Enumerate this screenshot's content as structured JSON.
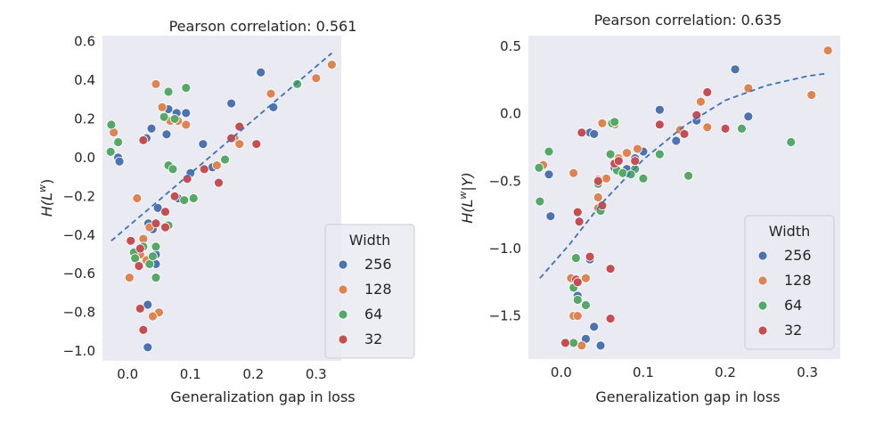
{
  "colors": {
    "background": "#eaeaf2",
    "grid": "#ffffff",
    "trend": "#3a73b9",
    "256": "#4c72b0",
    "128": "#dd8452",
    "64": "#55a868",
    "32": "#c44e52"
  },
  "chart_data": [
    {
      "type": "scatter",
      "title": "Pearson correlation: 0.561",
      "xlabel": "Generalization gap in loss",
      "ylabel_main": "H(L",
      "ylabel_sup": "w",
      "ylabel_tail": ")",
      "xlim": [
        -0.04,
        0.34
      ],
      "ylim": [
        -1.05,
        0.63
      ],
      "xticks": [
        0.0,
        0.1,
        0.2,
        0.3
      ],
      "xtick_labels": [
        "0.0",
        "0.1",
        "0.2",
        "0.3"
      ],
      "yticks": [
        0.6,
        0.4,
        0.2,
        0.0,
        -0.2,
        -0.4,
        -0.6,
        -0.8,
        -1.0
      ],
      "ytick_labels": [
        "0.6",
        "0.4",
        "0.2",
        "0.0",
        "−0.2",
        "−0.4",
        "−0.6",
        "−0.8",
        "−1.0"
      ],
      "grid": false,
      "legend_position": "bottom-right",
      "legend_title": "Width",
      "trend": {
        "type": "linear",
        "x": [
          -0.026,
          0.325
        ],
        "y": [
          -0.43,
          0.54
        ]
      },
      "series": [
        {
          "name": "256",
          "color_key": "256",
          "points": [
            [
              -0.015,
              0.0
            ],
            [
              -0.013,
              -0.02
            ],
            [
              0.03,
              0.1
            ],
            [
              0.038,
              0.15
            ],
            [
              0.065,
              0.25
            ],
            [
              0.078,
              0.23
            ],
            [
              0.093,
              0.23
            ],
            [
              0.062,
              0.12
            ],
            [
              0.12,
              0.07
            ],
            [
              0.1,
              -0.08
            ],
            [
              0.08,
              -0.21
            ],
            [
              0.033,
              -0.34
            ],
            [
              0.04,
              -0.37
            ],
            [
              0.048,
              -0.26
            ],
            [
              0.045,
              -0.5
            ],
            [
              0.045,
              -0.55
            ],
            [
              0.032,
              -0.76
            ],
            [
              0.032,
              -0.98
            ],
            [
              0.135,
              -0.05
            ],
            [
              0.165,
              0.28
            ],
            [
              0.212,
              0.44
            ],
            [
              0.232,
              0.26
            ]
          ]
        },
        {
          "name": "128",
          "color_key": "128",
          "points": [
            [
              -0.022,
              0.13
            ],
            [
              0.045,
              0.38
            ],
            [
              0.055,
              0.26
            ],
            [
              0.068,
              0.19
            ],
            [
              0.08,
              0.19
            ],
            [
              0.093,
              0.17
            ],
            [
              0.015,
              -0.21
            ],
            [
              0.035,
              -0.36
            ],
            [
              0.025,
              -0.42
            ],
            [
              0.03,
              -0.53
            ],
            [
              0.02,
              -0.5
            ],
            [
              0.003,
              -0.62
            ],
            [
              0.05,
              -0.8
            ],
            [
              0.04,
              -0.82
            ],
            [
              0.142,
              -0.04
            ],
            [
              0.17,
              0.1
            ],
            [
              0.178,
              0.07
            ],
            [
              0.228,
              0.33
            ],
            [
              0.3,
              0.41
            ],
            [
              0.325,
              0.48
            ]
          ]
        },
        {
          "name": "64",
          "color_key": "64",
          "points": [
            [
              -0.026,
              0.17
            ],
            [
              -0.027,
              0.03
            ],
            [
              -0.015,
              0.08
            ],
            [
              0.058,
              0.21
            ],
            [
              0.065,
              0.34
            ],
            [
              0.093,
              0.36
            ],
            [
              0.075,
              0.2
            ],
            [
              0.065,
              -0.04
            ],
            [
              0.072,
              -0.06
            ],
            [
              0.09,
              -0.22
            ],
            [
              0.105,
              -0.21
            ],
            [
              0.065,
              -0.35
            ],
            [
              0.045,
              -0.46
            ],
            [
              0.035,
              -0.55
            ],
            [
              0.025,
              -0.46
            ],
            [
              0.01,
              -0.49
            ],
            [
              0.012,
              -0.52
            ],
            [
              0.04,
              -0.51
            ],
            [
              0.045,
              -0.62
            ],
            [
              0.155,
              -0.01
            ],
            [
              0.27,
              0.38
            ]
          ]
        },
        {
          "name": "32",
          "color_key": "32",
          "points": [
            [
              0.025,
              0.09
            ],
            [
              0.005,
              -0.43
            ],
            [
              0.02,
              -0.47
            ],
            [
              0.018,
              -0.56
            ],
            [
              0.06,
              -0.28
            ],
            [
              0.045,
              -0.34
            ],
            [
              0.06,
              -0.36
            ],
            [
              0.075,
              -0.2
            ],
            [
              0.095,
              -0.11
            ],
            [
              0.122,
              -0.06
            ],
            [
              0.145,
              -0.13
            ],
            [
              0.02,
              -0.78
            ],
            [
              0.025,
              -0.89
            ],
            [
              0.165,
              0.1
            ],
            [
              0.178,
              0.16
            ],
            [
              0.205,
              0.07
            ]
          ]
        }
      ]
    },
    {
      "type": "scatter",
      "title": "Pearson correlation: 0.635",
      "xlabel": "Generalization gap in loss",
      "ylabel_main": "H(L",
      "ylabel_sup": "w",
      "ylabel_tail": "|Y)",
      "xlim": [
        -0.04,
        0.34
      ],
      "ylim": [
        -1.82,
        0.58
      ],
      "xticks": [
        0.0,
        0.1,
        0.2,
        0.3
      ],
      "xtick_labels": [
        "0.0",
        "0.1",
        "0.2",
        "0.3"
      ],
      "yticks": [
        0.5,
        0.0,
        -0.5,
        -1.0,
        -1.5
      ],
      "ytick_labels": [
        "0.5",
        "0.0",
        "−0.5",
        "−1.0",
        "−1.5"
      ],
      "grid": false,
      "legend_position": "bottom-right",
      "legend_title": "Width",
      "trend": {
        "type": "quadratic",
        "x": [
          -0.026,
          0.01,
          0.05,
          0.1,
          0.15,
          0.2,
          0.25,
          0.3,
          0.325
        ],
        "y": [
          -1.22,
          -0.97,
          -0.66,
          -0.34,
          -0.09,
          0.1,
          0.21,
          0.28,
          0.3
        ]
      },
      "series": [
        {
          "name": "256",
          "color_key": "256",
          "points": [
            [
              -0.015,
              -0.45
            ],
            [
              -0.013,
              -0.76
            ],
            [
              0.035,
              -0.14
            ],
            [
              0.04,
              -0.15
            ],
            [
              0.065,
              -0.4
            ],
            [
              0.08,
              -0.41
            ],
            [
              0.09,
              -0.33
            ],
            [
              0.1,
              -0.28
            ],
            [
              0.12,
              0.03
            ],
            [
              0.14,
              -0.2
            ],
            [
              0.165,
              -0.05
            ],
            [
              0.212,
              0.33
            ],
            [
              0.228,
              -0.02
            ],
            [
              0.035,
              -1.08
            ],
            [
              0.02,
              -1.35
            ],
            [
              0.04,
              -1.58
            ],
            [
              0.03,
              -1.67
            ],
            [
              0.048,
              -1.72
            ]
          ]
        },
        {
          "name": "128",
          "color_key": "128",
          "points": [
            [
              -0.022,
              -0.38
            ],
            [
              0.015,
              -0.44
            ],
            [
              0.05,
              -0.07
            ],
            [
              0.065,
              -0.08
            ],
            [
              0.07,
              -0.33
            ],
            [
              0.08,
              -0.29
            ],
            [
              0.093,
              -0.26
            ],
            [
              0.045,
              -0.62
            ],
            [
              0.045,
              -0.7
            ],
            [
              0.012,
              -1.22
            ],
            [
              0.015,
              -1.5
            ],
            [
              0.02,
              -1.5
            ],
            [
              0.025,
              -1.72
            ],
            [
              0.03,
              -1.22
            ],
            [
              0.145,
              -0.12
            ],
            [
              0.178,
              -0.1
            ],
            [
              0.17,
              0.09
            ],
            [
              0.228,
              0.19
            ],
            [
              0.305,
              0.14
            ],
            [
              0.325,
              0.47
            ],
            [
              0.055,
              -0.48
            ]
          ]
        },
        {
          "name": "64",
          "color_key": "64",
          "points": [
            [
              -0.027,
              -0.4
            ],
            [
              -0.026,
              -0.65
            ],
            [
              -0.015,
              -0.28
            ],
            [
              0.062,
              -0.07
            ],
            [
              0.065,
              -0.06
            ],
            [
              0.06,
              -0.3
            ],
            [
              0.068,
              -0.42
            ],
            [
              0.075,
              -0.44
            ],
            [
              0.09,
              -0.41
            ],
            [
              0.1,
              -0.48
            ],
            [
              0.085,
              -0.45
            ],
            [
              0.048,
              -0.72
            ],
            [
              0.045,
              -0.52
            ],
            [
              0.018,
              -1.07
            ],
            [
              0.02,
              -1.38
            ],
            [
              0.03,
              -1.42
            ],
            [
              0.015,
              -1.29
            ],
            [
              0.015,
              -1.7
            ],
            [
              0.12,
              -0.3
            ],
            [
              0.155,
              -0.46
            ],
            [
              0.22,
              -0.11
            ],
            [
              0.28,
              -0.21
            ]
          ]
        },
        {
          "name": "32",
          "color_key": "32",
          "points": [
            [
              0.025,
              -0.14
            ],
            [
              0.02,
              -0.73
            ],
            [
              0.022,
              -0.8
            ],
            [
              0.045,
              -0.49
            ],
            [
              0.065,
              -0.37
            ],
            [
              0.07,
              -0.35
            ],
            [
              0.09,
              -0.35
            ],
            [
              0.12,
              -0.08
            ],
            [
              0.15,
              -0.15
            ],
            [
              0.165,
              -0.01
            ],
            [
              0.178,
              0.16
            ],
            [
              0.2,
              -0.11
            ],
            [
              0.018,
              -1.23
            ],
            [
              0.02,
              -1.25
            ],
            [
              0.035,
              -1.06
            ],
            [
              0.06,
              -1.15
            ],
            [
              0.06,
              -1.52
            ],
            [
              0.005,
              -1.7
            ],
            [
              0.045,
              -0.5
            ],
            [
              0.05,
              -0.68
            ]
          ]
        }
      ]
    }
  ]
}
